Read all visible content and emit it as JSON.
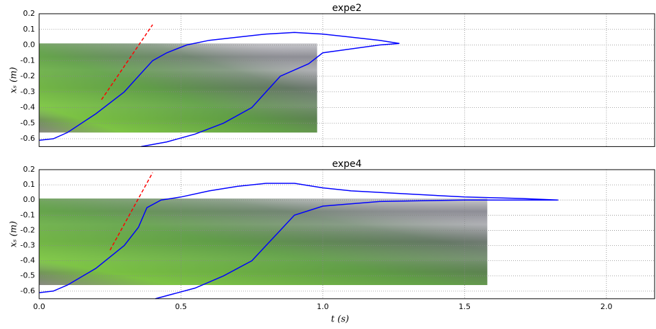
{
  "chart_data": [
    {
      "type": "line",
      "title": "expe2",
      "ylabel": "xₛ (m)",
      "xlim": [
        0,
        2.17
      ],
      "ylim": [
        -0.65,
        0.2
      ],
      "xticks": [
        0,
        0.5,
        1,
        1.5,
        2
      ],
      "show_xtick_labels": false,
      "yticks": [
        0.2,
        0.1,
        {
          "value": 0,
          "label": "0.0"
        },
        -0.1,
        -0.2,
        -0.3,
        -0.4,
        -0.5,
        -0.6
      ],
      "grid": true,
      "image": {
        "x": [
          0,
          0.98
        ],
        "y": [
          -0.56,
          0.01
        ]
      },
      "series": [
        {
          "color": "#0000ff",
          "dash": false,
          "x": [
            0,
            0.05,
            0.1,
            0.2,
            0.3,
            0.35,
            0.4,
            0.45,
            0.52,
            0.6,
            0.7,
            0.8,
            0.9,
            1.0,
            1.1,
            1.2,
            1.27,
            1.2,
            1.0,
            0.95,
            0.85,
            0.8,
            0.75,
            0.65,
            0.55,
            0.45,
            0.36
          ],
          "values": [
            -0.61,
            -0.6,
            -0.56,
            -0.44,
            -0.3,
            -0.2,
            -0.1,
            -0.05,
            0.0,
            0.03,
            0.05,
            0.07,
            0.08,
            0.07,
            0.05,
            0.03,
            0.01,
            0.0,
            -0.05,
            -0.12,
            -0.2,
            -0.3,
            -0.4,
            -0.5,
            -0.57,
            -0.62,
            -0.65
          ]
        },
        {
          "color": "#ff0000",
          "dash": true,
          "x": [
            0.22,
            0.4
          ],
          "values": [
            -0.35,
            0.13
          ]
        }
      ]
    },
    {
      "type": "line",
      "title": "expe4",
      "ylabel": "xₛ (m)",
      "xlabel": "t (s)",
      "xlim": [
        0,
        2.17
      ],
      "ylim": [
        -0.65,
        0.2
      ],
      "xticks": [
        {
          "value": 0,
          "label": "0.0"
        },
        0.5,
        {
          "value": 1,
          "label": "1.0"
        },
        1.5,
        {
          "value": 2,
          "label": "2.0"
        }
      ],
      "show_xtick_labels": true,
      "yticks": [
        0.2,
        0.1,
        {
          "value": 0,
          "label": "0.0"
        },
        -0.1,
        -0.2,
        -0.3,
        -0.4,
        -0.5,
        -0.6
      ],
      "grid": true,
      "image": {
        "x": [
          0,
          1.58
        ],
        "y": [
          -0.56,
          0.01
        ]
      },
      "series": [
        {
          "color": "#0000ff",
          "dash": false,
          "x": [
            0,
            0.05,
            0.1,
            0.2,
            0.3,
            0.35,
            0.38,
            0.43,
            0.5,
            0.6,
            0.7,
            0.8,
            0.9,
            1.0,
            1.1,
            1.3,
            1.5,
            1.7,
            1.83,
            1.5,
            1.2,
            1.0,
            0.9,
            0.85,
            0.8,
            0.75,
            0.65,
            0.55,
            0.41
          ],
          "values": [
            -0.61,
            -0.6,
            -0.56,
            -0.45,
            -0.3,
            -0.18,
            -0.05,
            0.0,
            0.02,
            0.06,
            0.09,
            0.11,
            0.11,
            0.08,
            0.06,
            0.04,
            0.02,
            0.01,
            0.0,
            0.0,
            -0.01,
            -0.04,
            -0.1,
            -0.2,
            -0.3,
            -0.4,
            -0.5,
            -0.58,
            -0.65
          ]
        },
        {
          "color": "#ff0000",
          "dash": true,
          "x": [
            0.25,
            0.4
          ],
          "values": [
            -0.33,
            0.18
          ]
        }
      ]
    }
  ]
}
